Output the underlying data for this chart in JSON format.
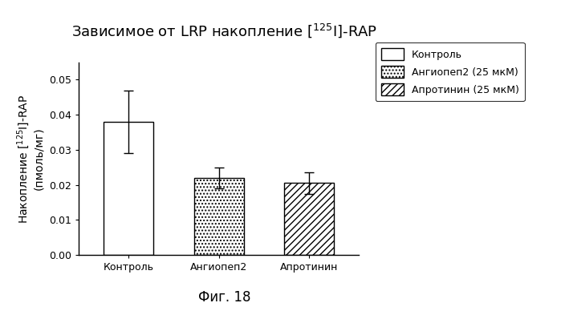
{
  "title": "Зависимое от LRP накопление [$^{125}$I]-RAP",
  "ylabel": "Накопление [$^{125}$I]-RAP\n(пмоль/мг)",
  "xlabel_labels": [
    "Контроль",
    "Ангиопеп2",
    "Апротинин"
  ],
  "values": [
    0.038,
    0.022,
    0.0205
  ],
  "errors": [
    0.009,
    0.003,
    0.003
  ],
  "ylim": [
    0,
    0.055
  ],
  "yticks": [
    0.0,
    0.01,
    0.02,
    0.03,
    0.04,
    0.05
  ],
  "legend_labels": [
    "Контроль",
    "Ангиопеп2 (25 мкМ)",
    "Апротинин (25 мкМ)"
  ],
  "figcaption": "Фиг. 18",
  "background_color": "white",
  "title_fontsize": 13,
  "axis_fontsize": 10,
  "tick_fontsize": 9,
  "legend_fontsize": 9,
  "caption_fontsize": 12
}
